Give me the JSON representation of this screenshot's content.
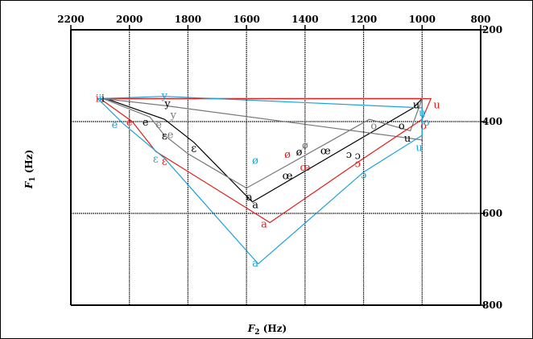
{
  "chart_data": {
    "type": "scatter",
    "xlabel": {
      "main": "F",
      "sub": "2",
      "unit": " (Hz)"
    },
    "ylabel": {
      "main": "F",
      "sub": "1",
      "unit": " (Hz)"
    },
    "xlim": [
      2200,
      800
    ],
    "ylim": [
      200,
      800
    ],
    "x_ticks": [
      2200,
      2000,
      1800,
      1600,
      1400,
      1200,
      1000,
      800
    ],
    "y_ticks": [
      200,
      400,
      600,
      800
    ],
    "x_grid": [
      2000,
      1800,
      1600,
      1400,
      1200,
      1000
    ],
    "y_grid": [
      400,
      600
    ],
    "axis_positions": {
      "x": "top",
      "y": "right"
    },
    "grid": true,
    "colors": {
      "black": "#000000",
      "red": "#e0201c",
      "cyan": "#1aa3d6",
      "gray": "#777777",
      "grid": "#000000"
    },
    "polygons": [
      {
        "color": "black",
        "points": [
          [
            2080,
            350
          ],
          [
            1880,
            395
          ],
          [
            1780,
            445
          ],
          [
            1580,
            575
          ],
          [
            1030,
            370
          ],
          [
            1000,
            350
          ],
          [
            2080,
            350
          ]
        ]
      },
      {
        "color": "gray",
        "points": [
          [
            2090,
            350
          ],
          [
            1930,
            390
          ],
          [
            1880,
            430
          ],
          [
            1800,
            470
          ],
          [
            1600,
            545
          ],
          [
            1180,
            395
          ],
          [
            1040,
            420
          ],
          [
            1000,
            350
          ],
          [
            1000,
            440
          ],
          [
            1880,
            365
          ],
          [
            2090,
            350
          ]
        ]
      },
      {
        "color": "red",
        "points": [
          [
            2100,
            350
          ],
          [
            1990,
            400
          ],
          [
            1910,
            465
          ],
          [
            1520,
            620
          ],
          [
            1200,
            480
          ],
          [
            1000,
            395
          ],
          [
            970,
            350
          ],
          [
            2100,
            350
          ]
        ]
      },
      {
        "color": "cyan",
        "points": [
          [
            2110,
            350
          ],
          [
            2100,
            355
          ],
          [
            2020,
            405
          ],
          [
            1880,
            480
          ],
          [
            1560,
            710
          ],
          [
            1200,
            510
          ],
          [
            1000,
            430
          ],
          [
            1000,
            370
          ],
          [
            1880,
            345
          ],
          [
            2110,
            350
          ]
        ]
      }
    ],
    "labels": [
      {
        "t": "i",
        "x": 2110,
        "y": 348,
        "c": "red"
      },
      {
        "t": "i",
        "x": 2100,
        "y": 348,
        "c": "cyan"
      },
      {
        "t": "i",
        "x": 2090,
        "y": 348,
        "c": "black"
      },
      {
        "t": "y",
        "x": 1880,
        "y": 342,
        "c": "cyan"
      },
      {
        "t": "y",
        "x": 1870,
        "y": 360,
        "c": "black"
      },
      {
        "t": "y",
        "x": 1850,
        "y": 384,
        "c": "gray"
      },
      {
        "t": "e",
        "x": 2050,
        "y": 405,
        "c": "cyan"
      },
      {
        "t": "e",
        "x": 2000,
        "y": 400,
        "c": "red"
      },
      {
        "t": "e",
        "x": 1945,
        "y": 400,
        "c": "black"
      },
      {
        "t": "e",
        "x": 1900,
        "y": 405,
        "c": "gray"
      },
      {
        "t": "e",
        "x": 1860,
        "y": 427,
        "c": "gray"
      },
      {
        "t": "ε",
        "x": 1880,
        "y": 430,
        "c": "black"
      },
      {
        "t": "ε",
        "x": 1780,
        "y": 457,
        "c": "black"
      },
      {
        "t": "ε",
        "x": 1880,
        "y": 485,
        "c": "red"
      },
      {
        "t": "ε",
        "x": 1910,
        "y": 480,
        "c": "cyan"
      },
      {
        "t": "ø",
        "x": 1570,
        "y": 483,
        "c": "cyan"
      },
      {
        "t": "ø",
        "x": 1460,
        "y": 470,
        "c": "red"
      },
      {
        "t": "ø",
        "x": 1420,
        "y": 465,
        "c": "black"
      },
      {
        "t": "ø",
        "x": 1400,
        "y": 450,
        "c": "gray"
      },
      {
        "t": "œ",
        "x": 1330,
        "y": 462,
        "c": "black"
      },
      {
        "t": "œ",
        "x": 1400,
        "y": 498,
        "c": "red"
      },
      {
        "t": "œ",
        "x": 1460,
        "y": 517,
        "c": "black"
      },
      {
        "t": "a",
        "x": 1590,
        "y": 563,
        "c": "black"
      },
      {
        "t": "a",
        "x": 1570,
        "y": 580,
        "c": "black"
      },
      {
        "t": "a",
        "x": 1540,
        "y": 622,
        "c": "red"
      },
      {
        "t": "a",
        "x": 1570,
        "y": 707,
        "c": "cyan"
      },
      {
        "t": "ɔ",
        "x": 1250,
        "y": 470,
        "c": "black"
      },
      {
        "t": "ɔ",
        "x": 1220,
        "y": 473,
        "c": "black"
      },
      {
        "t": "ɔ",
        "x": 1220,
        "y": 490,
        "c": "red"
      },
      {
        "t": "ɔ",
        "x": 1200,
        "y": 515,
        "c": "cyan"
      },
      {
        "t": "o",
        "x": 1165,
        "y": 408,
        "c": "gray"
      },
      {
        "t": "o",
        "x": 1070,
        "y": 408,
        "c": "black"
      },
      {
        "t": "o",
        "x": 995,
        "y": 408,
        "c": "red"
      },
      {
        "t": "o",
        "x": 985,
        "y": 400,
        "c": "cyan"
      },
      {
        "t": "u",
        "x": 1050,
        "y": 435,
        "c": "black"
      },
      {
        "t": "u",
        "x": 1010,
        "y": 455,
        "c": "cyan"
      },
      {
        "t": "u",
        "x": 1000,
        "y": 380,
        "c": "cyan"
      },
      {
        "t": "u",
        "x": 1020,
        "y": 362,
        "c": "black"
      },
      {
        "t": "u",
        "x": 950,
        "y": 362,
        "c": "red"
      }
    ]
  }
}
